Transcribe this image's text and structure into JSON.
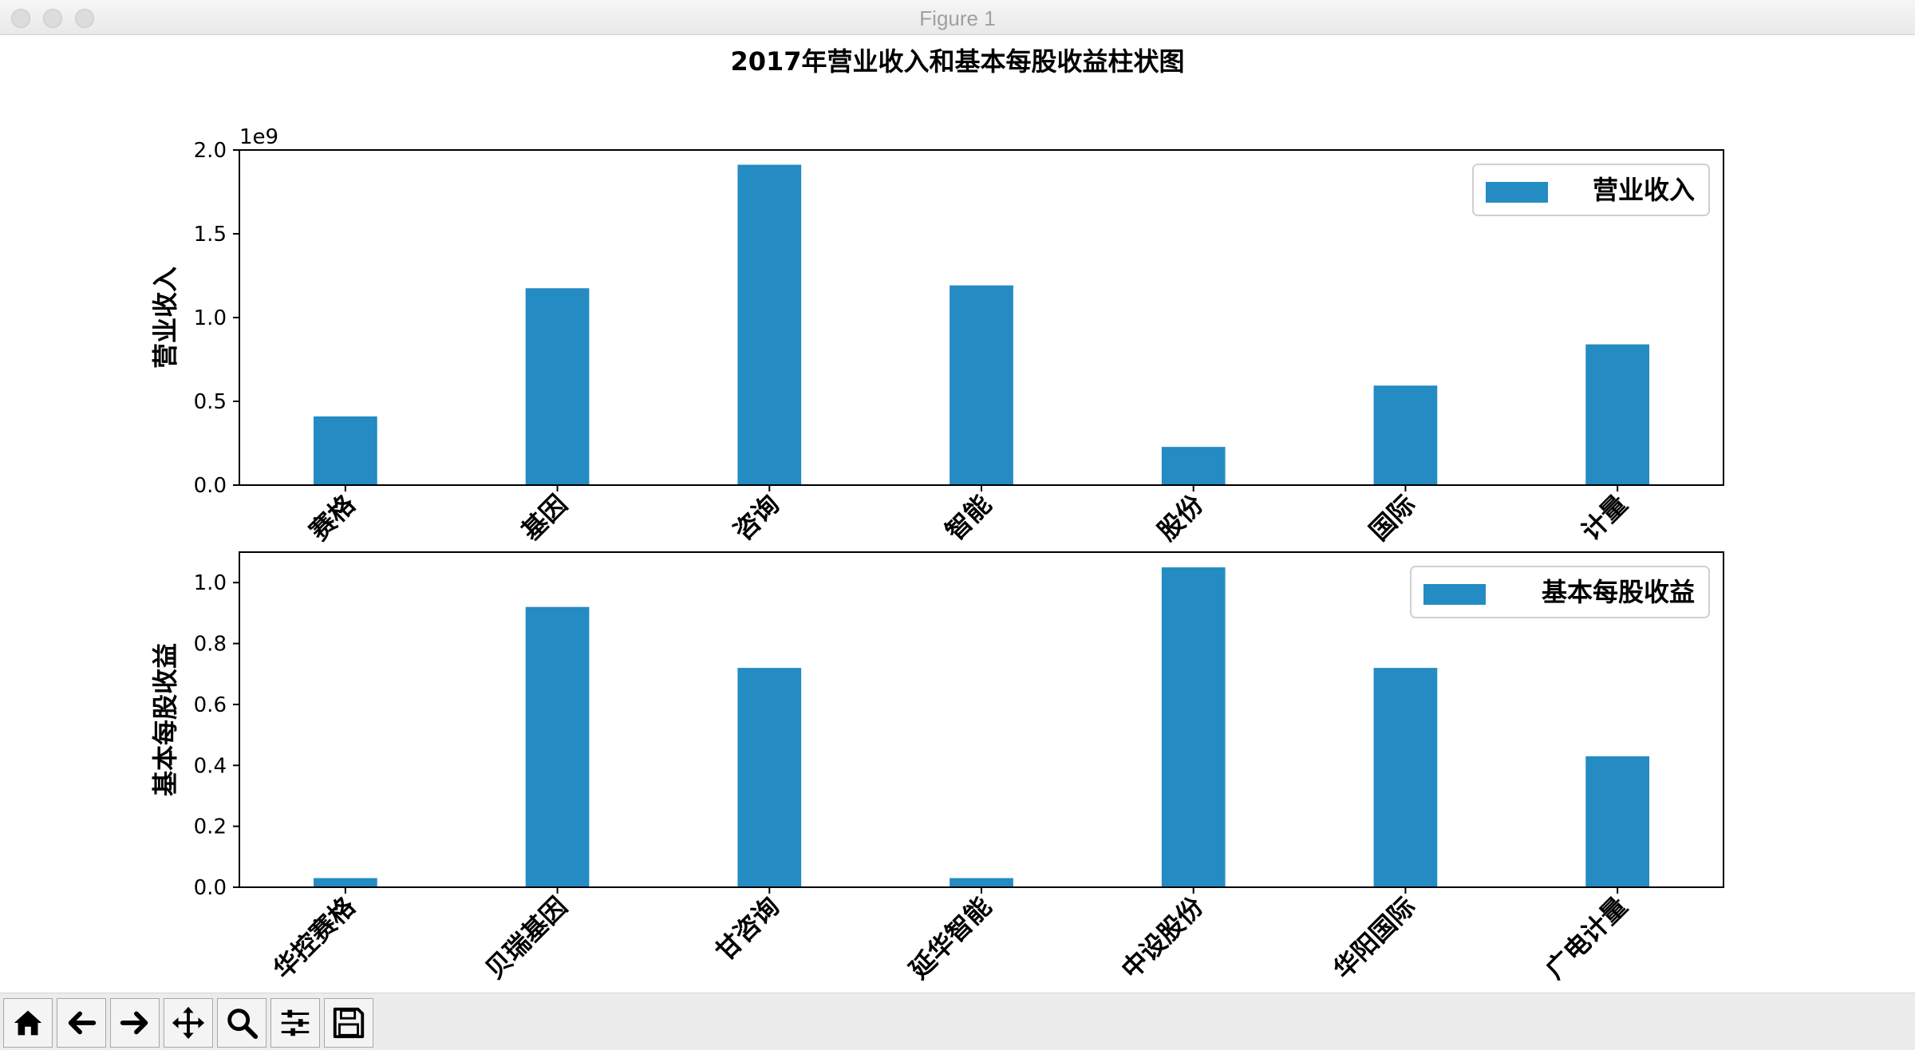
{
  "window": {
    "title": "Figure 1"
  },
  "toolbar": {
    "buttons": [
      {
        "name": "home-icon"
      },
      {
        "name": "back-arrow-icon"
      },
      {
        "name": "forward-arrow-icon"
      },
      {
        "name": "pan-move-icon"
      },
      {
        "name": "zoom-magnifier-icon"
      },
      {
        "name": "configure-subplots-icon"
      },
      {
        "name": "save-floppy-icon"
      }
    ]
  },
  "chart_data": {
    "title": "2017年营业收入和基本每股收益柱状图",
    "bar_color": "#248bc3",
    "charts": [
      {
        "type": "bar",
        "ylabel": "营业收入",
        "offset_text": "1e9",
        "multiplier": 1000000000,
        "ylim": [
          0,
          2.0
        ],
        "yticks": [
          0.0,
          0.5,
          1.0,
          1.5,
          2.0
        ],
        "tick_format": 1,
        "legend": {
          "label": "营业收入",
          "position": "upper right"
        },
        "tick_labels": [
          "华控赛格",
          "贝瑞基因",
          "甘咨询",
          "延华智能",
          "中设股份",
          "华阳国际",
          "广电计量"
        ],
        "tick_labels_visible": [
          "赛格",
          "基因",
          "咨询",
          "智能",
          "股份",
          "国际",
          "计量"
        ],
        "values": [
          410000000,
          1175000000,
          1912000000,
          1192000000,
          228000000,
          594000000,
          840000000
        ]
      },
      {
        "type": "bar",
        "ylabel": "基本每股收益",
        "ylim": [
          0,
          1.1
        ],
        "yticks": [
          0.0,
          0.2,
          0.4,
          0.6,
          0.8,
          1.0
        ],
        "tick_format": 1,
        "legend": {
          "label": "基本每股收益",
          "position": "upper right"
        },
        "tick_labels": [
          "华控赛格",
          "贝瑞基因",
          "甘咨询",
          "延华智能",
          "中设股份",
          "华阳国际",
          "广电计量"
        ],
        "tick_labels_visible": [
          "华控赛格",
          "贝瑞基因",
          "甘咨询",
          "延华智能",
          "中设股份",
          "华阳国际",
          "广电计量"
        ],
        "values": [
          0.03,
          0.92,
          0.72,
          0.03,
          1.05,
          0.72,
          0.43
        ]
      }
    ]
  }
}
